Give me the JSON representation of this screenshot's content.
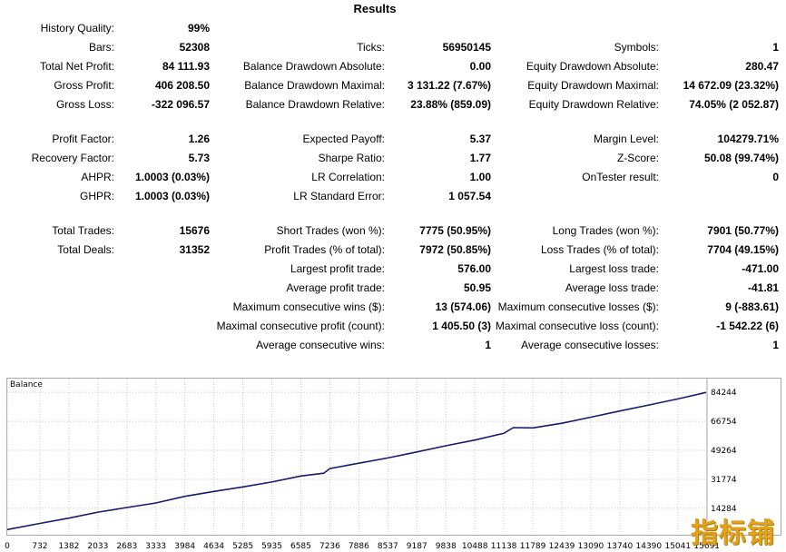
{
  "header": {
    "title": "Results"
  },
  "stats": {
    "history_quality": {
      "label": "History Quality:",
      "value": "99%"
    },
    "bars": {
      "label": "Bars:",
      "value": "52308"
    },
    "ticks": {
      "label": "Ticks:",
      "value": "56950145"
    },
    "symbols": {
      "label": "Symbols:",
      "value": "1"
    },
    "total_net_profit": {
      "label": "Total Net Profit:",
      "value": "84 111.93"
    },
    "balance_dd_abs": {
      "label": "Balance Drawdown Absolute:",
      "value": "0.00"
    },
    "equity_dd_abs": {
      "label": "Equity Drawdown Absolute:",
      "value": "280.47"
    },
    "gross_profit": {
      "label": "Gross Profit:",
      "value": "406 208.50"
    },
    "balance_dd_max": {
      "label": "Balance Drawdown Maximal:",
      "value": "3 131.22 (7.67%)"
    },
    "equity_dd_max": {
      "label": "Equity Drawdown Maximal:",
      "value": "14 672.09 (23.32%)"
    },
    "gross_loss": {
      "label": "Gross Loss:",
      "value": "-322 096.57"
    },
    "balance_dd_rel": {
      "label": "Balance Drawdown Relative:",
      "value": "23.88% (859.09)"
    },
    "equity_dd_rel": {
      "label": "Equity Drawdown Relative:",
      "value": "74.05% (2 052.87)"
    },
    "profit_factor": {
      "label": "Profit Factor:",
      "value": "1.26"
    },
    "expected_payoff": {
      "label": "Expected Payoff:",
      "value": "5.37"
    },
    "margin_level": {
      "label": "Margin Level:",
      "value": "104279.71%"
    },
    "recovery_factor": {
      "label": "Recovery Factor:",
      "value": "5.73"
    },
    "sharpe_ratio": {
      "label": "Sharpe Ratio:",
      "value": "1.77"
    },
    "z_score": {
      "label": "Z-Score:",
      "value": "50.08 (99.74%)"
    },
    "ahpr": {
      "label": "AHPR:",
      "value": "1.0003 (0.03%)"
    },
    "lr_correlation": {
      "label": "LR Correlation:",
      "value": "1.00"
    },
    "ontester": {
      "label": "OnTester result:",
      "value": "0"
    },
    "ghpr": {
      "label": "GHPR:",
      "value": "1.0003 (0.03%)"
    },
    "lr_std_error": {
      "label": "LR Standard Error:",
      "value": "1 057.54"
    },
    "total_trades": {
      "label": "Total Trades:",
      "value": "15676"
    },
    "short_trades": {
      "label": "Short Trades (won %):",
      "value": "7775 (50.95%)"
    },
    "long_trades": {
      "label": "Long Trades (won %):",
      "value": "7901 (50.77%)"
    },
    "total_deals": {
      "label": "Total Deals:",
      "value": "31352"
    },
    "profit_trades": {
      "label": "Profit Trades (% of total):",
      "value": "7972 (50.85%)"
    },
    "loss_trades": {
      "label": "Loss Trades (% of total):",
      "value": "7704 (49.15%)"
    },
    "largest_profit": {
      "label": "Largest profit trade:",
      "value": "576.00"
    },
    "largest_loss": {
      "label": "Largest loss trade:",
      "value": "-471.00"
    },
    "avg_profit": {
      "label": "Average profit trade:",
      "value": "50.95"
    },
    "avg_loss": {
      "label": "Average loss trade:",
      "value": "-41.81"
    },
    "max_consec_wins": {
      "label": "Maximum consecutive wins ($):",
      "value": "13 (574.06)"
    },
    "max_consec_losses": {
      "label": "Maximum consecutive losses ($):",
      "value": "9 (-883.61)"
    },
    "maximal_consec_profit": {
      "label": "Maximal consecutive profit (count):",
      "value": "1 405.50 (3)"
    },
    "maximal_consec_loss": {
      "label": "Maximal consecutive loss (count):",
      "value": "-1 542.22 (6)"
    },
    "avg_consec_wins": {
      "label": "Average consecutive wins:",
      "value": "1"
    },
    "avg_consec_losses": {
      "label": "Average consecutive losses:",
      "value": "1"
    }
  },
  "chart_data": {
    "type": "line",
    "title": "Balance",
    "x_ticks": [
      0,
      732,
      1382,
      2033,
      2683,
      3333,
      3984,
      4634,
      5285,
      5935,
      6585,
      7236,
      7886,
      8537,
      9187,
      9838,
      10488,
      11138,
      11789,
      12439,
      13090,
      13740,
      14390,
      15041,
      15691
    ],
    "y_ticks": [
      14284,
      31774,
      49264,
      66754,
      84244
    ],
    "xlim": [
      0,
      15676
    ],
    "ylim": [
      0,
      92000
    ],
    "series": [
      {
        "name": "Balance",
        "color": "#1a1a6e",
        "x": [
          0,
          732,
          1382,
          2033,
          2683,
          3333,
          3984,
          4634,
          5285,
          5935,
          6585,
          7100,
          7236,
          7886,
          8537,
          9187,
          9838,
          10488,
          11138,
          11350,
          11789,
          12439,
          13090,
          13740,
          14390,
          15041,
          15676
        ],
        "y": [
          1500,
          5200,
          8400,
          12000,
          14800,
          17500,
          21500,
          24500,
          27200,
          30200,
          33800,
          35500,
          38300,
          41500,
          44700,
          48300,
          52000,
          55500,
          59500,
          63000,
          62800,
          65600,
          69300,
          73000,
          76600,
          80300,
          84200
        ]
      }
    ]
  },
  "watermark": {
    "text": "指标铺"
  }
}
